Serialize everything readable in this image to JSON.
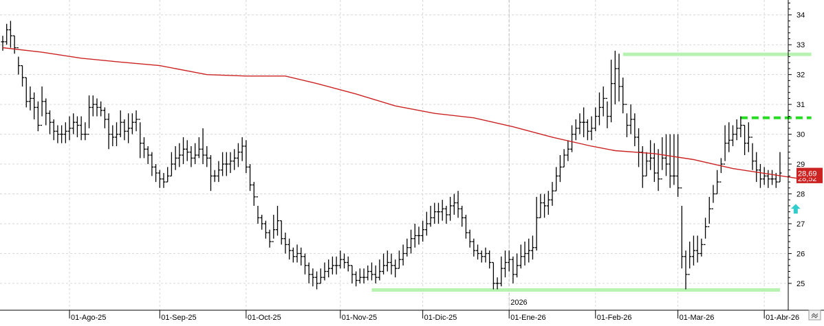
{
  "chart_data": {
    "type": "ohlc",
    "ylim": [
      24.1,
      34.5
    ],
    "y_ticks": [
      25,
      26,
      27,
      28,
      29,
      30,
      31,
      32,
      33,
      34
    ],
    "y_tick_labels": [
      "25",
      "26",
      "27",
      "28",
      "29",
      "30",
      "31",
      "32",
      "33",
      "34"
    ],
    "x_ticks": [
      {
        "label": "01-Ago-25",
        "bar_index": 17
      },
      {
        "label": "01-Sep-25",
        "bar_index": 40
      },
      {
        "label": "01-Oct-25",
        "bar_index": 62
      },
      {
        "label": "01-Nov-25",
        "bar_index": 86
      },
      {
        "label": "01-Dic-25",
        "bar_index": 107
      },
      {
        "label": "01-Ene-26",
        "bar_index": 129
      },
      {
        "label": "01-Feb-26",
        "bar_index": 151
      },
      {
        "label": "01-Mar-26",
        "bar_index": 172
      },
      {
        "label": "01-Abr-26",
        "bar_index": 194
      }
    ],
    "year_marker": {
      "label": "2026",
      "bar_index": 129
    },
    "grid": true,
    "price_labels": [
      {
        "text": "28,69",
        "value": 28.69,
        "color": "#cc2222"
      },
      {
        "text": "28,52",
        "value": 28.52,
        "color": "#cc2222"
      }
    ],
    "moving_average": {
      "color": "#cc2222",
      "points": [
        [
          0,
          32.9
        ],
        [
          10,
          32.75
        ],
        [
          20,
          32.55
        ],
        [
          30,
          32.42
        ],
        [
          40,
          32.3
        ],
        [
          52,
          32.0
        ],
        [
          62,
          31.95
        ],
        [
          72,
          31.95
        ],
        [
          80,
          31.7
        ],
        [
          90,
          31.35
        ],
        [
          100,
          30.95
        ],
        [
          110,
          30.7
        ],
        [
          120,
          30.55
        ],
        [
          130,
          30.25
        ],
        [
          140,
          29.9
        ],
        [
          150,
          29.6
        ],
        [
          156,
          29.45
        ],
        [
          166,
          29.35
        ],
        [
          176,
          29.15
        ],
        [
          186,
          28.85
        ],
        [
          196,
          28.65
        ],
        [
          206,
          28.45
        ]
      ]
    },
    "horizontal_lines": [
      {
        "from_index": 158,
        "to_index": 206,
        "value": 32.68,
        "color": "#b8f2b0",
        "style": "solid"
      },
      {
        "from_index": 94,
        "to_index": 198,
        "value": 24.78,
        "color": "#b8f2b0",
        "style": "solid"
      },
      {
        "from_index": 188,
        "to_index": 206,
        "value": 30.55,
        "color": "#22dd22",
        "style": "dashed"
      }
    ],
    "arrow": {
      "bar_index": 202,
      "value": 27.5,
      "direction": "up",
      "color": "#33cccc"
    },
    "bars": [
      [
        33.3,
        32.8,
        33.1
      ],
      [
        33.7,
        33.0,
        33.5
      ],
      [
        33.8,
        32.9,
        33.3
      ],
      [
        33.3,
        32.7,
        32.9
      ],
      [
        32.6,
        32.0,
        32.3
      ],
      [
        32.3,
        31.6,
        31.9
      ],
      [
        31.9,
        30.9,
        31.1
      ],
      [
        31.6,
        30.8,
        31.2
      ],
      [
        31.4,
        30.5,
        30.9
      ],
      [
        31.1,
        30.1,
        30.3
      ],
      [
        31.6,
        30.6,
        31.1
      ],
      [
        31.2,
        30.3,
        30.7
      ],
      [
        30.8,
        30.0,
        30.4
      ],
      [
        30.5,
        29.8,
        30.1
      ],
      [
        30.3,
        29.7,
        30.0
      ],
      [
        30.3,
        29.7,
        30.0
      ],
      [
        30.4,
        29.7,
        30.1
      ],
      [
        30.6,
        29.8,
        30.2
      ],
      [
        30.7,
        30.0,
        30.4
      ],
      [
        30.6,
        29.9,
        30.3
      ],
      [
        30.6,
        29.8,
        30.0
      ],
      [
        30.4,
        29.8,
        30.0
      ],
      [
        31.3,
        30.2,
        30.9
      ],
      [
        31.3,
        30.6,
        31.0
      ],
      [
        31.2,
        30.6,
        30.9
      ],
      [
        31.1,
        30.6,
        30.8
      ],
      [
        30.9,
        30.2,
        30.5
      ],
      [
        30.7,
        29.5,
        30.0
      ],
      [
        30.3,
        29.6,
        29.9
      ],
      [
        30.4,
        29.6,
        30.0
      ],
      [
        30.8,
        29.9,
        30.4
      ],
      [
        30.5,
        29.8,
        30.1
      ],
      [
        30.7,
        29.7,
        30.2
      ],
      [
        30.7,
        30.0,
        30.4
      ],
      [
        30.8,
        30.1,
        30.5
      ],
      [
        30.4,
        29.2,
        29.7
      ],
      [
        29.9,
        29.2,
        29.5
      ],
      [
        29.6,
        29.0,
        29.3
      ],
      [
        29.4,
        28.6,
        28.9
      ],
      [
        29.0,
        28.4,
        28.7
      ],
      [
        28.8,
        28.2,
        28.5
      ],
      [
        28.7,
        28.2,
        28.4
      ],
      [
        28.9,
        28.4,
        28.6
      ],
      [
        29.4,
        28.6,
        29.0
      ],
      [
        29.6,
        28.8,
        29.2
      ],
      [
        29.7,
        28.9,
        29.3
      ],
      [
        29.9,
        29.0,
        29.5
      ],
      [
        29.8,
        29.1,
        29.4
      ],
      [
        29.6,
        28.9,
        29.2
      ],
      [
        29.7,
        29.0,
        29.3
      ],
      [
        29.9,
        29.2,
        29.5
      ],
      [
        30.2,
        29.0,
        29.3
      ],
      [
        29.6,
        28.9,
        29.2
      ],
      [
        29.3,
        28.1,
        28.6
      ],
      [
        28.8,
        28.4,
        28.6
      ],
      [
        29.1,
        28.4,
        28.8
      ],
      [
        29.4,
        28.6,
        29.0
      ],
      [
        29.4,
        28.6,
        29.0
      ],
      [
        29.4,
        28.7,
        29.1
      ],
      [
        29.5,
        28.8,
        29.2
      ],
      [
        29.7,
        28.9,
        29.4
      ],
      [
        29.9,
        29.1,
        29.6
      ],
      [
        29.8,
        28.7,
        28.9
      ],
      [
        29.0,
        28.1,
        28.3
      ],
      [
        28.4,
        27.6,
        27.9
      ],
      [
        27.6,
        27.0,
        27.2
      ],
      [
        27.3,
        26.8,
        27.0
      ],
      [
        27.1,
        26.5,
        26.7
      ],
      [
        26.8,
        26.2,
        26.4
      ],
      [
        27.3,
        26.5,
        26.8
      ],
      [
        27.6,
        26.6,
        27.1
      ],
      [
        27.1,
        26.3,
        26.5
      ],
      [
        26.7,
        26.0,
        26.3
      ],
      [
        26.5,
        25.8,
        26.1
      ],
      [
        26.2,
        25.7,
        25.9
      ],
      [
        26.3,
        25.7,
        26.0
      ],
      [
        26.2,
        25.6,
        25.9
      ],
      [
        26.0,
        25.3,
        25.6
      ],
      [
        25.7,
        25.0,
        25.3
      ],
      [
        25.5,
        24.9,
        25.2
      ],
      [
        25.4,
        24.8,
        25.0
      ],
      [
        25.5,
        25.0,
        25.2
      ],
      [
        25.7,
        25.1,
        25.4
      ],
      [
        25.8,
        25.2,
        25.5
      ],
      [
        25.9,
        25.3,
        25.6
      ],
      [
        25.9,
        25.3,
        25.6
      ],
      [
        26.1,
        25.5,
        25.8
      ],
      [
        26.0,
        25.5,
        25.7
      ],
      [
        25.9,
        25.4,
        25.6
      ],
      [
        25.6,
        25.0,
        25.3
      ],
      [
        25.4,
        24.9,
        25.1
      ],
      [
        25.5,
        25.0,
        25.2
      ],
      [
        25.5,
        25.0,
        25.2
      ],
      [
        25.6,
        25.1,
        25.4
      ],
      [
        25.7,
        25.1,
        25.3
      ],
      [
        25.6,
        25.0,
        25.2
      ],
      [
        25.8,
        25.1,
        25.4
      ],
      [
        26.0,
        25.3,
        25.6
      ],
      [
        26.1,
        25.4,
        25.7
      ],
      [
        26.0,
        25.3,
        25.6
      ],
      [
        25.8,
        25.2,
        25.5
      ],
      [
        26.1,
        25.5,
        25.8
      ],
      [
        26.3,
        25.6,
        26.0
      ],
      [
        26.5,
        25.9,
        26.2
      ],
      [
        26.8,
        26.0,
        26.5
      ],
      [
        27.0,
        26.2,
        26.6
      ],
      [
        26.9,
        26.3,
        26.6
      ],
      [
        27.1,
        26.4,
        26.8
      ],
      [
        27.4,
        26.6,
        27.0
      ],
      [
        27.6,
        26.9,
        27.2
      ],
      [
        27.7,
        27.0,
        27.4
      ],
      [
        27.7,
        27.0,
        27.4
      ],
      [
        27.8,
        27.1,
        27.5
      ],
      [
        27.6,
        27.0,
        27.3
      ],
      [
        27.9,
        27.1,
        27.6
      ],
      [
        28.0,
        27.3,
        27.7
      ],
      [
        28.1,
        27.2,
        27.5
      ],
      [
        27.6,
        26.9,
        27.2
      ],
      [
        27.3,
        26.5,
        26.7
      ],
      [
        26.8,
        26.2,
        26.4
      ],
      [
        26.5,
        25.9,
        26.1
      ],
      [
        26.3,
        25.8,
        26.0
      ],
      [
        26.1,
        25.7,
        25.9
      ],
      [
        26.2,
        25.7,
        26.0
      ],
      [
        26.1,
        25.5,
        25.7
      ],
      [
        25.7,
        24.8,
        25.0
      ],
      [
        25.2,
        24.8,
        25.0
      ],
      [
        25.9,
        24.9,
        25.5
      ],
      [
        26.1,
        25.2,
        25.7
      ],
      [
        26.1,
        25.4,
        25.8
      ],
      [
        25.9,
        25.0,
        25.3
      ],
      [
        26.0,
        25.2,
        25.6
      ],
      [
        26.3,
        25.5,
        25.9
      ],
      [
        26.4,
        25.6,
        26.0
      ],
      [
        26.5,
        25.7,
        26.1
      ],
      [
        26.6,
        25.8,
        26.2
      ],
      [
        27.9,
        26.1,
        27.2
      ],
      [
        28.0,
        27.2,
        27.7
      ],
      [
        28.0,
        27.2,
        27.6
      ],
      [
        28.1,
        27.3,
        27.8
      ],
      [
        28.4,
        27.6,
        28.1
      ],
      [
        28.9,
        28.1,
        28.6
      ],
      [
        29.3,
        28.4,
        28.9
      ],
      [
        29.5,
        28.9,
        29.3
      ],
      [
        29.8,
        29.1,
        29.5
      ],
      [
        30.3,
        29.4,
        30.0
      ],
      [
        30.5,
        29.8,
        30.2
      ],
      [
        30.7,
        30.0,
        30.4
      ],
      [
        30.9,
        29.9,
        30.4
      ],
      [
        30.5,
        29.8,
        30.1
      ],
      [
        30.6,
        29.8,
        30.2
      ],
      [
        30.9,
        30.1,
        30.6
      ],
      [
        31.4,
        30.3,
        30.9
      ],
      [
        31.6,
        30.6,
        31.2
      ],
      [
        31.1,
        30.2,
        30.6
      ],
      [
        32.5,
        30.4,
        31.7
      ],
      [
        32.8,
        31.0,
        32.2
      ],
      [
        32.7,
        31.1,
        31.6
      ],
      [
        31.9,
        30.7,
        31.0
      ],
      [
        30.7,
        29.9,
        30.3
      ],
      [
        31.0,
        30.0,
        30.5
      ],
      [
        30.7,
        29.6,
        29.9
      ],
      [
        30.2,
        28.9,
        29.4
      ],
      [
        29.6,
        28.2,
        28.6
      ],
      [
        29.4,
        28.6,
        29.1
      ],
      [
        29.8,
        28.8,
        29.2
      ],
      [
        29.7,
        28.4,
        28.7
      ],
      [
        29.5,
        28.1,
        28.5
      ],
      [
        29.9,
        28.8,
        29.2
      ],
      [
        30.0,
        28.6,
        29.0
      ],
      [
        30.0,
        28.2,
        28.6
      ],
      [
        30.0,
        28.3,
        28.6
      ],
      [
        30.0,
        27.9,
        28.2
      ],
      [
        27.6,
        25.5,
        25.9
      ],
      [
        26.1,
        24.8,
        25.3
      ],
      [
        26.4,
        25.5,
        25.9
      ],
      [
        26.6,
        25.6,
        26.1
      ],
      [
        26.6,
        25.7,
        26.0
      ],
      [
        26.5,
        25.9,
        26.3
      ],
      [
        27.2,
        26.5,
        26.9
      ],
      [
        27.9,
        27.0,
        27.5
      ],
      [
        28.3,
        27.7,
        28.0
      ],
      [
        28.8,
        28.0,
        28.4
      ],
      [
        29.2,
        28.7,
        29.0
      ],
      [
        30.3,
        29.1,
        29.7
      ],
      [
        30.4,
        29.4,
        29.8
      ],
      [
        30.3,
        29.6,
        30.0
      ],
      [
        30.5,
        29.8,
        30.2
      ],
      [
        30.6,
        29.9,
        30.3
      ],
      [
        30.3,
        29.3,
        29.7
      ],
      [
        30.4,
        29.4,
        29.9
      ],
      [
        29.7,
        28.8,
        29.1
      ],
      [
        29.4,
        28.4,
        28.8
      ],
      [
        29.0,
        28.2,
        28.5
      ],
      [
        28.9,
        28.3,
        28.6
      ],
      [
        28.8,
        28.2,
        28.5
      ],
      [
        28.8,
        28.3,
        28.5
      ],
      [
        28.7,
        28.2,
        28.4
      ],
      [
        29.4,
        28.4,
        28.7
      ]
    ]
  }
}
